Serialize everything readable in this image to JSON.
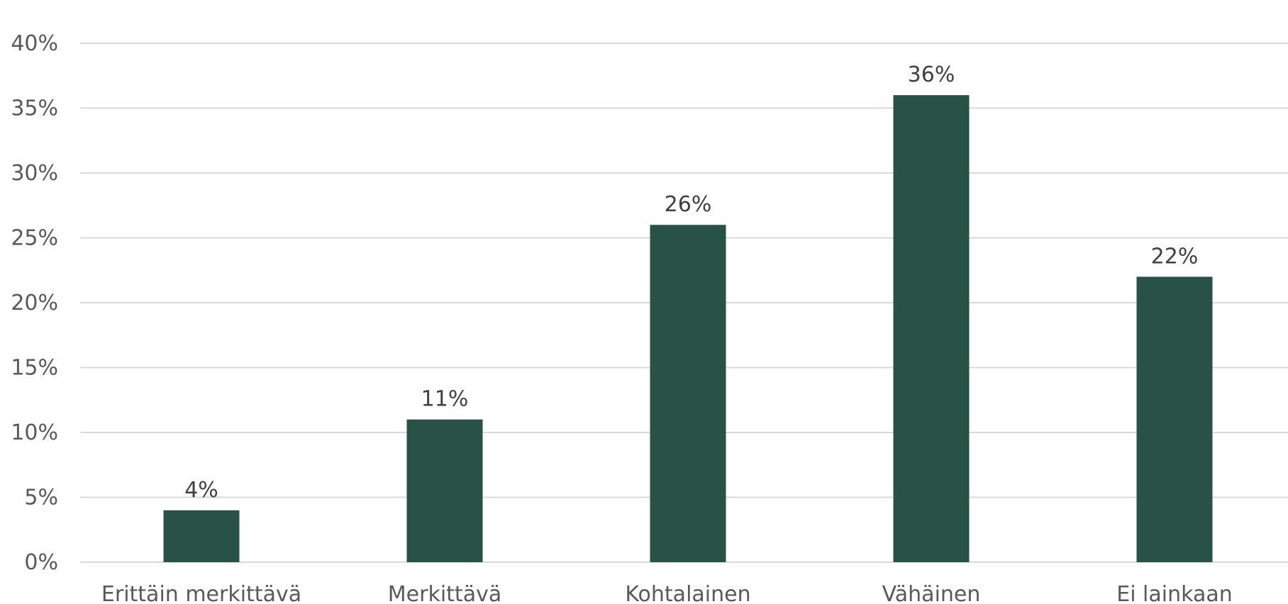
{
  "chart_data": {
    "type": "bar",
    "title": "",
    "xlabel": "",
    "ylabel": "",
    "categories": [
      "Erittäin merkittävä",
      "Merkittävä",
      "Kohtalainen",
      "Vähäinen",
      "Ei lainkaan"
    ],
    "values": [
      4,
      11,
      26,
      36,
      22
    ],
    "data_labels": [
      "4%",
      "11%",
      "26%",
      "36%",
      "22%"
    ],
    "ylim": [
      0,
      40
    ],
    "y_ticks": [
      0,
      5,
      10,
      15,
      20,
      25,
      30,
      35,
      40
    ],
    "y_tick_labels": [
      "0%",
      "5%",
      "10%",
      "15%",
      "20%",
      "25%",
      "30%",
      "35%",
      "40%"
    ],
    "grid": true,
    "legend": "none",
    "bar_color": "#285246"
  }
}
